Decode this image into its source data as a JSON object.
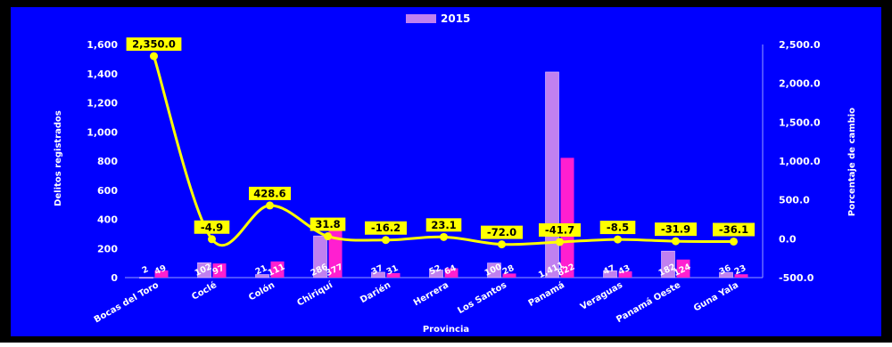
{
  "chart_data": {
    "type": "bar",
    "title": "",
    "xlabel": "Provincia",
    "ylabel": "Delitos registrados",
    "y2label": "Porcentaje de cambio",
    "ylim": [
      0,
      1600
    ],
    "y2lim": [
      -500,
      2500
    ],
    "yticks": [
      "1,600",
      "1,400",
      "1,200",
      "1,000",
      "800",
      "600",
      "400",
      "200",
      "0"
    ],
    "y2ticks": [
      "2,500.0",
      "2,000.0",
      "1,500.0",
      "1,000.0",
      "500.0",
      "0.0",
      "-500.0"
    ],
    "legend": "top",
    "categories": [
      "Bocas del Toro",
      "Coclé",
      "Colón",
      "Chiriquí",
      "Darién",
      "Herrera",
      "Los Santos",
      "Panamá",
      "Veraguas",
      "Panamá Oeste",
      "Guna Yala"
    ],
    "series": [
      {
        "name": "2015",
        "type": "bar",
        "color": "#c080f0",
        "values": [
          2,
          102,
          21,
          286,
          37,
          52,
          100,
          1411,
          47,
          182,
          36
        ],
        "labels": [
          "2",
          "102",
          "21",
          "286",
          "37",
          "52",
          "100",
          "1,411",
          "47",
          "182",
          "36"
        ]
      },
      {
        "name": "",
        "type": "bar",
        "color": "#ff1fd0",
        "values": [
          49,
          97,
          111,
          377,
          31,
          64,
          28,
          822,
          43,
          124,
          23
        ],
        "labels": [
          "49",
          "97",
          "111",
          "377",
          "31",
          "64",
          "28",
          "822",
          "43",
          "124",
          "23"
        ]
      },
      {
        "name": "",
        "type": "line",
        "axis": "right",
        "color": "#ffff00",
        "values": [
          2350.0,
          -4.9,
          428.6,
          31.8,
          -16.2,
          23.1,
          -72.0,
          -41.7,
          -8.5,
          -31.9,
          -36.1
        ],
        "labels": [
          "2,350.0",
          "-4.9",
          "428.6",
          "31.8",
          "-16.2",
          "23.1",
          "-72.0",
          "-41.7",
          "-8.5",
          "-31.9",
          "-36.1"
        ]
      }
    ],
    "colors": {
      "background": "#0000ff",
      "frame": "#000000",
      "text": "#ffffff",
      "label_box": "#ffff00"
    }
  }
}
